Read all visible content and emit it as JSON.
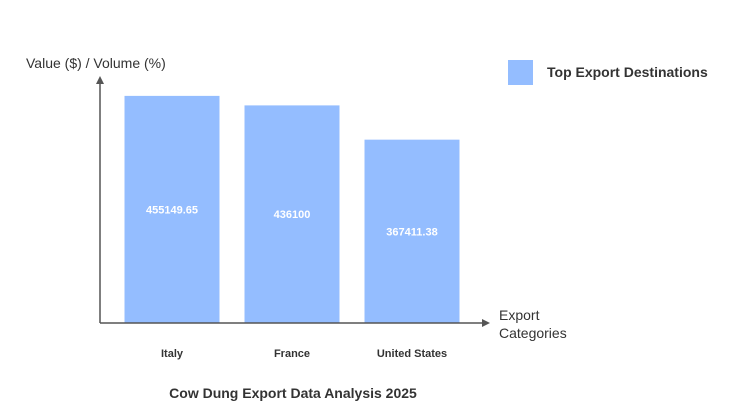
{
  "chart_data": {
    "type": "bar",
    "title": "Cow Dung Export Data Analysis 2025",
    "ylabel": "Value ($) / Volume (%)",
    "xlabel_line1": "Export",
    "xlabel_line2": "Categories",
    "categories": [
      "Italy",
      "France",
      "United States"
    ],
    "series": [
      {
        "name": "Top Export Destinations",
        "values": [
          455149.65,
          436100,
          367411.38
        ],
        "value_labels": [
          "455149.65",
          "436100",
          "367411.38"
        ],
        "color": "#94bdff"
      }
    ],
    "ylim": [
      0,
      495000
    ],
    "grid": false,
    "legend_position": "top-right",
    "axis_color": "#555555"
  }
}
